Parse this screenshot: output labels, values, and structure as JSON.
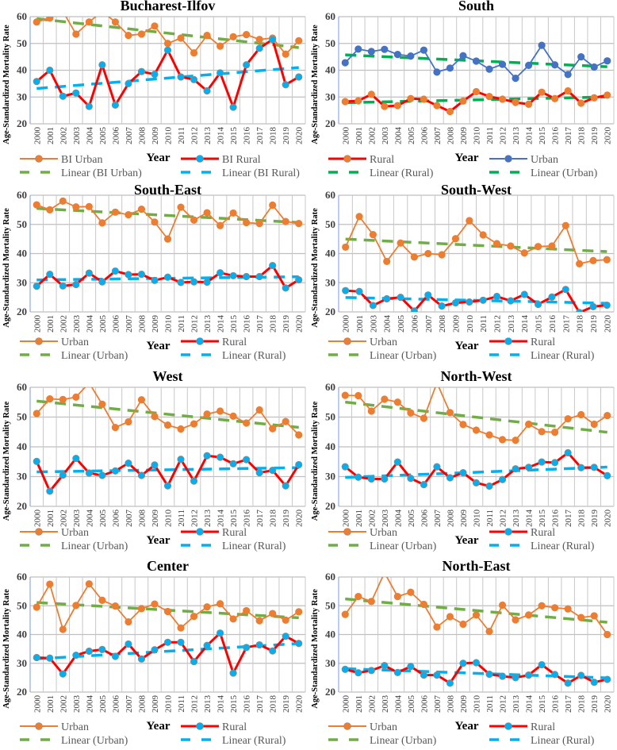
{
  "chart_data": [
    {
      "type": "line",
      "title": "Bucharest-Ilfov",
      "xlabel": "Year",
      "ylabel": "Age-Standardized Mortality Rate",
      "ylim": [
        20,
        60
      ],
      "yticks": [
        20,
        30,
        40,
        50,
        60
      ],
      "grid": true,
      "categories": [
        "2000",
        "2001",
        "2002",
        "2003",
        "2004",
        "2005",
        "2006",
        "2007",
        "2008",
        "2009",
        "2010",
        "2011",
        "2012",
        "2013",
        "2014",
        "2015",
        "2016",
        "2017",
        "2018",
        "2019",
        "2020"
      ],
      "series": [
        {
          "name": "BI Urban",
          "line_color": "#ED7D31",
          "marker_color": "#ED7D31",
          "values": [
            58,
            59.5,
            62,
            53.5,
            58,
            62,
            58,
            53,
            53.5,
            56.5,
            50,
            52,
            46.5,
            53,
            49,
            52.5,
            53.3,
            51.5,
            52,
            46,
            51
          ]
        },
        {
          "name": "BI Rural",
          "line_color": "#FF0000",
          "marker_color": "#00B0F0",
          "values": [
            35.8,
            40,
            30.3,
            31.5,
            26.5,
            42,
            27,
            35,
            39.5,
            38.5,
            47.5,
            37.5,
            36.5,
            32.3,
            39,
            26.2,
            42,
            48.2,
            51.5,
            34.6,
            37.5
          ]
        }
      ],
      "trendlines": [
        {
          "name": "Linear (BI Urban)",
          "series_index": 0,
          "color": "#70AD47"
        },
        {
          "name": "Linear (BI Rural)",
          "series_index": 1,
          "color": "#00B0F0"
        }
      ],
      "legend": {
        "placement": "bottom",
        "items": [
          {
            "kind": "series",
            "index": 0
          },
          {
            "kind": "series",
            "index": 1
          },
          {
            "kind": "trend",
            "index": 0
          },
          {
            "kind": "trend",
            "index": 1
          }
        ]
      }
    },
    {
      "type": "line",
      "title": "South",
      "xlabel": "Year",
      "ylabel": "Age-Standardized Mortality Rate",
      "ylim": [
        20,
        60
      ],
      "yticks": [
        20,
        30,
        40,
        50,
        60
      ],
      "grid": true,
      "categories": [
        "2000",
        "2001",
        "2002",
        "2003",
        "2004",
        "2005",
        "2006",
        "2007",
        "2008",
        "2009",
        "2010",
        "2011",
        "2012",
        "2013",
        "2014",
        "2015",
        "2016",
        "2017",
        "2018",
        "2019",
        "2020"
      ],
      "series": [
        {
          "name": "Rural",
          "line_color": "#FF0000",
          "marker_color": "#ED7D31",
          "values": [
            28.3,
            28.6,
            31,
            26.5,
            26.8,
            29.4,
            29.2,
            26.8,
            24.6,
            28.5,
            32,
            30.2,
            29.2,
            28,
            27.3,
            31.8,
            29.4,
            32.3,
            27.7,
            29.7,
            30.7
          ]
        },
        {
          "name": "Urban",
          "line_color": "#4472C4",
          "marker_color": "#4472C4",
          "values": [
            42.8,
            47.9,
            47,
            47.8,
            45.9,
            45.3,
            47.5,
            39.3,
            40.8,
            45.4,
            43.4,
            40.4,
            42.2,
            37,
            41.8,
            49.3,
            42,
            38.4,
            45,
            41.2,
            43.5
          ]
        }
      ],
      "trendlines": [
        {
          "name": "Linear (Rural)",
          "series_index": 0,
          "color": "#00B050"
        },
        {
          "name": "Linear (Urban)",
          "series_index": 1,
          "color": "#00B050"
        }
      ],
      "legend": {
        "placement": "bottom",
        "items": [
          {
            "kind": "series",
            "index": 0
          },
          {
            "kind": "series",
            "index": 1
          },
          {
            "kind": "trend",
            "index": 0
          },
          {
            "kind": "trend",
            "index": 1
          }
        ]
      }
    },
    {
      "type": "line",
      "title": "South-East",
      "xlabel": "Year",
      "ylabel": "Age-Standardized Mortality Rate",
      "ylim": [
        20,
        60
      ],
      "yticks": [
        20,
        30,
        40,
        50,
        60
      ],
      "grid": true,
      "categories": [
        "2000",
        "2001",
        "2002",
        "2003",
        "2004",
        "2005",
        "2006",
        "2007",
        "2008",
        "2009",
        "2010",
        "2011",
        "2012",
        "2013",
        "2014",
        "2015",
        "2016",
        "2017",
        "2018",
        "2019",
        "2020"
      ],
      "series": [
        {
          "name": "Urban",
          "line_color": "#ED7D31",
          "marker_color": "#ED7D31",
          "values": [
            56.7,
            55,
            58,
            56,
            56.1,
            50.5,
            54.2,
            53.3,
            55.2,
            50.8,
            45,
            55.9,
            51.5,
            54,
            49.6,
            53.9,
            50.6,
            50.3,
            56.6,
            51,
            50.3
          ]
        },
        {
          "name": "Rural",
          "line_color": "#FF0000",
          "marker_color": "#00B0F0",
          "values": [
            28.8,
            32.9,
            28.9,
            29.4,
            33.3,
            30.3,
            34,
            32.8,
            32.9,
            30.8,
            31.9,
            30.1,
            30.3,
            30.2,
            33.4,
            32.4,
            32.1,
            32.1,
            35.9,
            28.2,
            31
          ]
        }
      ],
      "trendlines": [
        {
          "name": "Linear (Urban)",
          "series_index": 0,
          "color": "#70AD47"
        },
        {
          "name": "Linear (Rural)",
          "series_index": 1,
          "color": "#00B0F0"
        }
      ],
      "legend": {
        "placement": "bottom",
        "items": [
          {
            "kind": "series",
            "index": 0
          },
          {
            "kind": "series",
            "index": 1
          },
          {
            "kind": "trend",
            "index": 0
          },
          {
            "kind": "trend",
            "index": 1
          }
        ]
      }
    },
    {
      "type": "line",
      "title": "South-West",
      "xlabel": "Year",
      "ylabel": "Age-Standardized Mortality Rate",
      "ylim": [
        20,
        60
      ],
      "yticks": [
        20,
        30,
        40,
        50,
        60
      ],
      "grid": true,
      "categories": [
        "2000",
        "2001",
        "2003",
        "2004",
        "2005",
        "2006",
        "2007",
        "2008",
        "2009",
        "2010",
        "2011",
        "2012",
        "2013",
        "2014",
        "2015",
        "2016",
        "2017",
        "2018",
        "2019",
        "2020"
      ],
      "series": [
        {
          "name": "Urban",
          "line_color": "#ED7D31",
          "marker_color": "#ED7D31",
          "values": [
            42.2,
            52.7,
            46.5,
            37.3,
            43.6,
            38.8,
            40,
            39.6,
            45.1,
            51.3,
            46.4,
            43.4,
            42.6,
            40.2,
            42.4,
            42.6,
            49.6,
            36.5,
            37.6,
            37.9
          ]
        },
        {
          "name": "Rural",
          "line_color": "#FF0000",
          "marker_color": "#00B0F0",
          "values": [
            27.3,
            27,
            22.2,
            24.5,
            25,
            20.3,
            25.8,
            22,
            23.1,
            23.4,
            24,
            25.3,
            23.8,
            26,
            22.6,
            25.1,
            27.7,
            19.8,
            21.8,
            22.3
          ]
        }
      ],
      "trendlines": [
        {
          "name": "Linear (Urban)",
          "series_index": 0,
          "color": "#70AD47"
        },
        {
          "name": "Linear (Rural)",
          "series_index": 1,
          "color": "#00B0F0"
        }
      ],
      "legend": {
        "placement": "bottom",
        "items": [
          {
            "kind": "series",
            "index": 0
          },
          {
            "kind": "series",
            "index": 1
          },
          {
            "kind": "trend",
            "index": 0
          },
          {
            "kind": "trend",
            "index": 1
          }
        ]
      }
    },
    {
      "type": "line",
      "title": "West",
      "xlabel": "Year",
      "ylabel": "Age-Standardized Mortality Rate",
      "ylim": [
        20,
        60
      ],
      "yticks": [
        20,
        30,
        40,
        50,
        60
      ],
      "grid": true,
      "categories": [
        "2000",
        "2001",
        "2002",
        "2003",
        "2004",
        "2005",
        "2006",
        "2007",
        "2008",
        "2009",
        "2010",
        "2011",
        "2012",
        "2013",
        "2014",
        "2015",
        "2016",
        "2017",
        "2018",
        "2019",
        "2020"
      ],
      "series": [
        {
          "name": "Urban",
          "line_color": "#ED7D31",
          "marker_color": "#ED7D31",
          "values": [
            51.2,
            56.1,
            55.9,
            56.7,
            61.5,
            54.3,
            46.5,
            48.4,
            55.8,
            50.2,
            47.3,
            46,
            47.7,
            51,
            52,
            50.3,
            48,
            52.4,
            46.1,
            48.5,
            44
          ]
        },
        {
          "name": "Rural",
          "line_color": "#FF0000",
          "marker_color": "#00B0F0",
          "values": [
            35.1,
            25.1,
            30.5,
            36.1,
            31.2,
            30.4,
            31.9,
            34.5,
            30.4,
            33.9,
            26.9,
            35.8,
            28.5,
            37,
            36.5,
            34.3,
            35.7,
            31.3,
            32.1,
            26.9,
            34
          ]
        }
      ],
      "trendlines": [
        {
          "name": "Linear (Urban)",
          "series_index": 0,
          "color": "#70AD47"
        },
        {
          "name": "Linear (Rural)",
          "series_index": 1,
          "color": "#00B0F0"
        }
      ],
      "legend": {
        "placement": "bottom",
        "items": [
          {
            "kind": "series",
            "index": 0
          },
          {
            "kind": "series",
            "index": 1
          },
          {
            "kind": "trend",
            "index": 0
          },
          {
            "kind": "trend",
            "index": 1
          }
        ]
      }
    },
    {
      "type": "line",
      "title": "North-West",
      "xlabel": "Year",
      "ylabel": "Age-Standardized Mortality Rate",
      "ylim": [
        20,
        60
      ],
      "yticks": [
        20,
        30,
        40,
        50,
        60
      ],
      "grid": true,
      "categories": [
        "2000",
        "2001",
        "2002",
        "2003",
        "2004",
        "2005",
        "2006",
        "2007",
        "2008",
        "2009",
        "2010",
        "2011",
        "2012",
        "2013",
        "2014",
        "2015",
        "2016",
        "2017",
        "2018",
        "2019",
        "2020"
      ],
      "series": [
        {
          "name": "Urban",
          "line_color": "#ED7D31",
          "marker_color": "#ED7D31",
          "values": [
            57.3,
            57.2,
            52,
            56,
            55,
            51.4,
            49.6,
            61.5,
            51.5,
            47.5,
            45.6,
            44,
            42.4,
            42.2,
            47.6,
            45.1,
            44.9,
            49.4,
            50.8,
            47.6,
            50.5
          ]
        },
        {
          "name": "Rural",
          "line_color": "#FF0000",
          "marker_color": "#00B0F0",
          "values": [
            33.3,
            29.8,
            29.2,
            29.2,
            34.9,
            29.4,
            27.3,
            33.3,
            29.6,
            31.3,
            27.9,
            26.8,
            29,
            32.6,
            33.1,
            34.9,
            34.7,
            38,
            33,
            33.1,
            30.3
          ]
        }
      ],
      "trendlines": [
        {
          "name": "Linear (Urban)",
          "series_index": 0,
          "color": "#70AD47"
        },
        {
          "name": "Linear (Rural)",
          "series_index": 1,
          "color": "#00B0F0"
        }
      ],
      "legend": {
        "placement": "bottom",
        "items": [
          {
            "kind": "series",
            "index": 0
          },
          {
            "kind": "series",
            "index": 1
          },
          {
            "kind": "trend",
            "index": 0
          },
          {
            "kind": "trend",
            "index": 1
          }
        ]
      }
    },
    {
      "type": "line",
      "title": "Center",
      "xlabel": "Year",
      "ylabel": "Age-Standardized Mortality Rate",
      "ylim": [
        20,
        60
      ],
      "yticks": [
        20,
        30,
        40,
        50,
        60
      ],
      "grid": true,
      "categories": [
        "2000",
        "2001",
        "2002",
        "2003",
        "2004",
        "2005",
        "2006",
        "2007",
        "2008",
        "2009",
        "2010",
        "2011",
        "2012",
        "2013",
        "2014",
        "2015",
        "2016",
        "2017",
        "2018",
        "2019",
        "2020"
      ],
      "series": [
        {
          "name": "Urban",
          "line_color": "#ED7D31",
          "marker_color": "#ED7D31",
          "values": [
            49.5,
            57.5,
            41.8,
            50.1,
            57.6,
            51.9,
            49.9,
            44.4,
            49,
            50.6,
            48,
            42.3,
            46.3,
            49.6,
            50.7,
            45.4,
            48.3,
            44.8,
            47.3,
            45,
            47.9
          ]
        },
        {
          "name": "Rural",
          "line_color": "#FF0000",
          "marker_color": "#00B0F0",
          "values": [
            32,
            31.8,
            26.3,
            32.8,
            34.2,
            34.8,
            32.4,
            36.7,
            31.5,
            34.7,
            37.3,
            37.3,
            30.6,
            36.2,
            40.5,
            26.6,
            35.5,
            36.4,
            34.3,
            39.4,
            36.9
          ]
        }
      ],
      "trendlines": [
        {
          "name": "Linear (Urban)",
          "series_index": 0,
          "color": "#70AD47"
        },
        {
          "name": "Linear (Rural)",
          "series_index": 1,
          "color": "#00B0F0"
        }
      ],
      "legend": {
        "placement": "bottom",
        "items": [
          {
            "kind": "series",
            "index": 0
          },
          {
            "kind": "series",
            "index": 1
          },
          {
            "kind": "trend",
            "index": 0
          },
          {
            "kind": "trend",
            "index": 1
          }
        ]
      }
    },
    {
      "type": "line",
      "title": "North-East",
      "xlabel": "Year",
      "ylabel": "Age-Standardized Mortality Rate",
      "ylim": [
        20,
        60
      ],
      "yticks": [
        20,
        30,
        40,
        50,
        60
      ],
      "grid": true,
      "categories": [
        "2000",
        "2001",
        "2002",
        "2003",
        "2004",
        "2005",
        "2006",
        "2007",
        "2008",
        "2009",
        "2010",
        "2011",
        "2012",
        "2013",
        "2014",
        "2015",
        "2016",
        "2017",
        "2018",
        "2019",
        "2020"
      ],
      "series": [
        {
          "name": "Urban",
          "line_color": "#ED7D31",
          "marker_color": "#ED7D31",
          "values": [
            47,
            53.2,
            51.5,
            61.5,
            53.2,
            54.7,
            50.5,
            42.6,
            46.2,
            43.6,
            46.8,
            41.1,
            50.2,
            45.1,
            46.8,
            50,
            49.3,
            48.9,
            45.9,
            46.5,
            40
          ]
        },
        {
          "name": "Rural",
          "line_color": "#FF0000",
          "marker_color": "#00B0F0",
          "values": [
            27.9,
            26.7,
            27.5,
            29.2,
            26.8,
            28.9,
            25.9,
            25.9,
            23.1,
            30,
            30.2,
            26.2,
            25.5,
            25,
            25.9,
            29.5,
            26.1,
            23.1,
            25.8,
            23.4,
            24.4
          ]
        }
      ],
      "trendlines": [
        {
          "name": "Linear (Urban)",
          "series_index": 0,
          "color": "#70AD47"
        },
        {
          "name": "Linear (Rural)",
          "series_index": 1,
          "color": "#00B0F0"
        }
      ],
      "legend": {
        "placement": "bottom",
        "items": [
          {
            "kind": "series",
            "index": 0
          },
          {
            "kind": "series",
            "index": 1
          },
          {
            "kind": "trend",
            "index": 0
          },
          {
            "kind": "trend",
            "index": 1
          }
        ]
      }
    }
  ]
}
